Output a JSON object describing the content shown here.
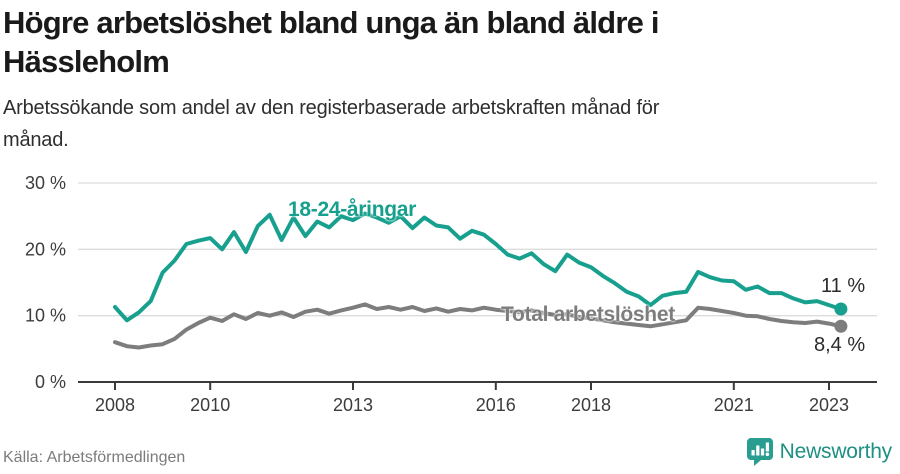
{
  "header": {
    "title": "Högre arbetslöshet bland unga än bland äldre i\nHässleholm",
    "subtitle": "Arbetssökande som andel av den registerbaserade arbetskraften månad för\nmånad."
  },
  "chart_data": {
    "type": "line",
    "title": "Högre arbetslöshet bland unga än bland äldre i Hässleholm",
    "xlabel": "",
    "ylabel": "Arbetssökande som andel av den registerbaserade arbetskraften",
    "unit": "%",
    "xlim": [
      2007.2,
      2024.2
    ],
    "ylim": [
      0,
      30
    ],
    "grid": "horizontal",
    "legend": "inline-labels",
    "x_ticks": [
      {
        "value": 2008,
        "label": "2008"
      },
      {
        "value": 2010,
        "label": "2010"
      },
      {
        "value": 2013,
        "label": "2013"
      },
      {
        "value": 2016,
        "label": "2016"
      },
      {
        "value": 2018,
        "label": "2018"
      },
      {
        "value": 2021,
        "label": "2021"
      },
      {
        "value": 2023,
        "label": "2023"
      }
    ],
    "y_ticks": [
      {
        "value": 0,
        "label": "0 %"
      },
      {
        "value": 10,
        "label": "10 %"
      },
      {
        "value": 20,
        "label": "20 %"
      },
      {
        "value": 30,
        "label": "30 %"
      }
    ],
    "x": [
      2008.0,
      2008.25,
      2008.5,
      2008.75,
      2009.0,
      2009.25,
      2009.5,
      2009.75,
      2010.0,
      2010.25,
      2010.5,
      2010.75,
      2011.0,
      2011.25,
      2011.5,
      2011.75,
      2012.0,
      2012.25,
      2012.5,
      2012.75,
      2013.0,
      2013.25,
      2013.5,
      2013.75,
      2014.0,
      2014.25,
      2014.5,
      2014.75,
      2015.0,
      2015.25,
      2015.5,
      2015.75,
      2016.0,
      2016.25,
      2016.5,
      2016.75,
      2017.0,
      2017.25,
      2017.5,
      2017.75,
      2018.0,
      2018.25,
      2018.5,
      2018.75,
      2019.0,
      2019.25,
      2019.5,
      2019.75,
      2020.0,
      2020.25,
      2020.5,
      2020.75,
      2021.0,
      2021.25,
      2021.5,
      2021.75,
      2022.0,
      2022.25,
      2022.5,
      2022.75,
      2023.0,
      2023.25
    ],
    "series": [
      {
        "name": "18-24-åringar",
        "color": "#17a08e",
        "end_label": "11 %",
        "end_value": 11.0,
        "values": [
          11.3,
          9.3,
          10.5,
          12.2,
          16.5,
          18.3,
          20.8,
          21.3,
          21.7,
          20.0,
          22.6,
          19.6,
          23.5,
          25.2,
          21.4,
          24.8,
          22.0,
          24.2,
          23.3,
          25.0,
          24.4,
          25.4,
          24.8,
          24.0,
          25.0,
          23.2,
          24.8,
          23.6,
          23.3,
          21.6,
          22.8,
          22.2,
          20.8,
          19.2,
          18.6,
          19.4,
          17.8,
          16.7,
          19.2,
          18.0,
          17.3,
          16.0,
          14.9,
          13.6,
          12.9,
          11.6,
          13.0,
          13.4,
          13.6,
          16.6,
          15.8,
          15.3,
          15.2,
          13.9,
          14.4,
          13.4,
          13.4,
          12.6,
          12.0,
          12.2,
          11.6,
          11.0
        ]
      },
      {
        "name": "Total arbetslöshet",
        "color": "#7d7d7d",
        "end_label": "8,4 %",
        "end_value": 8.4,
        "values": [
          6.0,
          5.4,
          5.2,
          5.5,
          5.7,
          6.5,
          7.9,
          8.9,
          9.7,
          9.2,
          10.2,
          9.5,
          10.4,
          10.0,
          10.5,
          9.8,
          10.6,
          10.9,
          10.3,
          10.8,
          11.2,
          11.7,
          11.0,
          11.3,
          10.9,
          11.3,
          10.7,
          11.1,
          10.6,
          11.0,
          10.8,
          11.2,
          10.9,
          10.7,
          10.5,
          10.8,
          10.4,
          10.1,
          10.2,
          9.8,
          9.6,
          9.3,
          9.0,
          8.8,
          8.6,
          8.4,
          8.7,
          9.0,
          9.3,
          11.2,
          11.0,
          10.7,
          10.4,
          10.0,
          9.9,
          9.5,
          9.2,
          9.0,
          8.9,
          9.1,
          8.8,
          8.4
        ]
      }
    ]
  },
  "annotations": {
    "young_label": "18-24-åringar",
    "total_label": "Total arbetslöshet",
    "young_end_value": "11 %",
    "total_end_value": "8,4 %"
  },
  "footer": {
    "source": "Källa: Arbetsförmedlingen",
    "brand": "Newsworthy"
  },
  "colors": {
    "young": "#17a08e",
    "total": "#7d7d7d",
    "brand": "#1f8f83",
    "grid": "#dcdcdc",
    "axis": "#3a3a3a",
    "tick_text": "#3c3c3c"
  }
}
